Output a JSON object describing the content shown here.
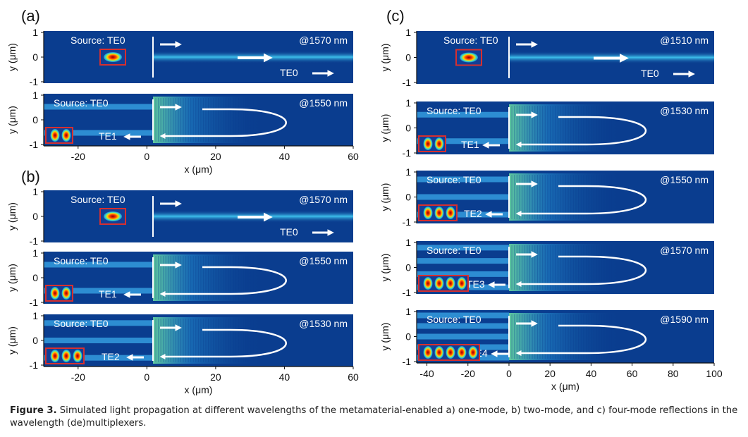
{
  "figure": {
    "panel_labels": {
      "a": "(a)",
      "b": "(b)",
      "c": "(c)"
    },
    "y_axis_label": "y (μm)",
    "x_axis_label": "x (μm)",
    "y_ticks": [
      "1",
      "0",
      "-1"
    ],
    "x_ticks_ab": [
      "-20",
      "0",
      "20",
      "40",
      "60"
    ],
    "x_ticks_c": [
      "-40",
      "-20",
      "0",
      "20",
      "40",
      "60",
      "80",
      "100"
    ],
    "source_label": "Source: TE0",
    "colors": {
      "field_bg": "#0a3d8f",
      "beam": "#39c2ee",
      "mode_box": "#d62f2f"
    },
    "panels": [
      {
        "group": "a",
        "wavelength": "@1570 nm",
        "mode": "TE0",
        "lobes": 1,
        "reflect": false
      },
      {
        "group": "a",
        "wavelength": "@1550 nm",
        "mode": "TE1",
        "lobes": 2,
        "reflect": true
      },
      {
        "group": "b",
        "wavelength": "@1570 nm",
        "mode": "TE0",
        "lobes": 1,
        "reflect": false
      },
      {
        "group": "b",
        "wavelength": "@1550 nm",
        "mode": "TE1",
        "lobes": 2,
        "reflect": true
      },
      {
        "group": "b",
        "wavelength": "@1530 nm",
        "mode": "TE2",
        "lobes": 3,
        "reflect": true
      },
      {
        "group": "c",
        "wavelength": "@1510 nm",
        "mode": "TE0",
        "lobes": 1,
        "reflect": false
      },
      {
        "group": "c",
        "wavelength": "@1530 nm",
        "mode": "TE1",
        "lobes": 2,
        "reflect": true
      },
      {
        "group": "c",
        "wavelength": "@1550 nm",
        "mode": "TE2",
        "lobes": 3,
        "reflect": true
      },
      {
        "group": "c",
        "wavelength": "@1570 nm",
        "mode": "TE3",
        "lobes": 4,
        "reflect": true
      },
      {
        "group": "c",
        "wavelength": "@1590 nm",
        "mode": "TE4",
        "lobes": 5,
        "reflect": true
      }
    ]
  },
  "caption": {
    "label": "Figure 3.",
    "text": "Simulated light propagation at different wavelengths of the metamaterial-enabled a) one-mode, b) two-mode, and c) four-mode reflections in the wavelength (de)multiplexers."
  }
}
